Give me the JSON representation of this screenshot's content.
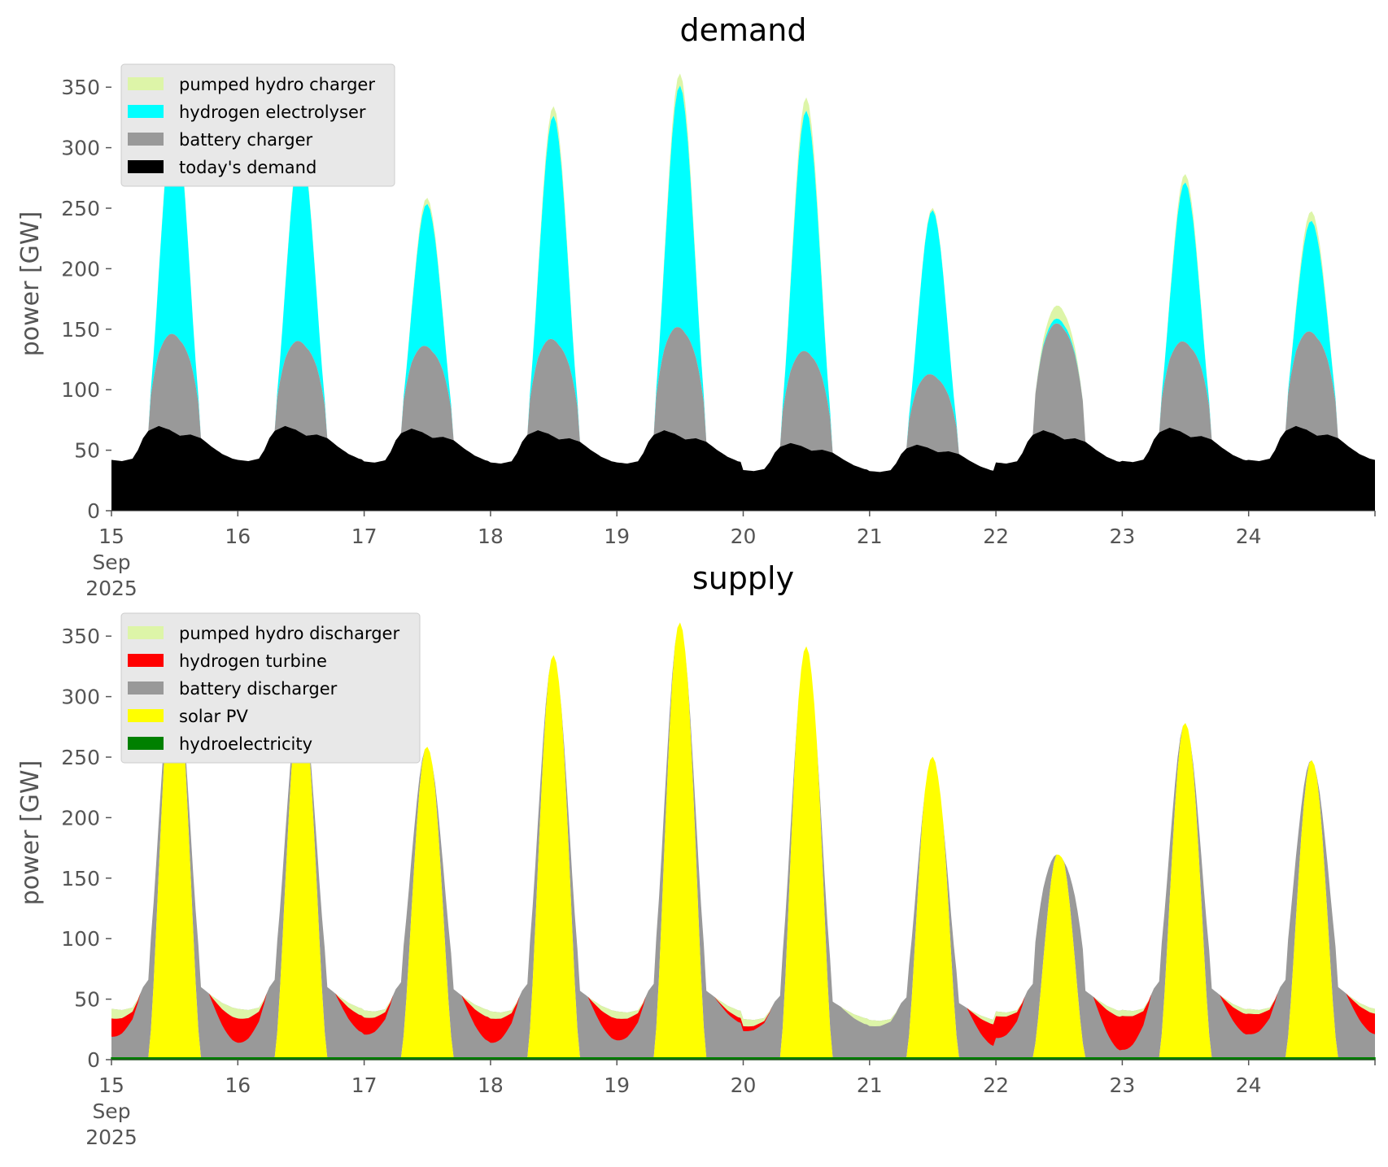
{
  "chart_data": [
    {
      "type": "area",
      "stacked": true,
      "title": "demand",
      "ylabel": "power [GW]",
      "xlabel": "",
      "xlim": [
        "2025-09-15",
        "2025-09-25"
      ],
      "ylim": [
        0,
        375
      ],
      "yticks": [
        0,
        50,
        100,
        150,
        200,
        250,
        300,
        350
      ],
      "xtick_labels": [
        "15\nSep\n2025",
        "16",
        "17",
        "18",
        "19",
        "20",
        "21",
        "22",
        "23",
        "24"
      ],
      "grid": false,
      "legend_position": "upper-left",
      "legend": [
        "pumped hydro charger",
        "hydrogen electrolyser",
        "battery charger",
        "today's demand"
      ],
      "series": [
        {
          "name": "today's demand",
          "color": "#000000",
          "base_profile": [
            [
              0,
              42
            ],
            [
              2,
              41
            ],
            [
              4,
              43
            ],
            [
              5,
              50
            ],
            [
              6,
              60
            ],
            [
              7,
              66
            ],
            [
              9,
              70
            ],
            [
              11,
              67
            ],
            [
              13,
              62
            ],
            [
              15,
              63
            ],
            [
              17,
              60
            ],
            [
              19,
              53
            ],
            [
              21,
              47
            ],
            [
              23,
              43
            ]
          ],
          "day_scale": [
            1.0,
            1.0,
            0.97,
            0.95,
            0.95,
            0.8,
            0.78,
            0.95,
            0.98,
            1.0
          ]
        },
        {
          "name": "battery charger",
          "color": "#999999",
          "daily_peak": [
            146,
            140,
            138,
            145,
            155,
            145,
            127,
            158,
            141,
            148
          ]
        },
        {
          "name": "hydrogen electrolyser",
          "color": "#00FFFF",
          "daily_peak": [
            330,
            302,
            256,
            330,
            355,
            344,
            263,
            162,
            273,
            240
          ]
        },
        {
          "name": "pumped hydro charger",
          "color": "#DDF5A8",
          "daily_peak": [
            333,
            305,
            261,
            338,
            365,
            355,
            265,
            173,
            280,
            248
          ]
        }
      ]
    },
    {
      "type": "area",
      "stacked": true,
      "title": "supply",
      "ylabel": "power [GW]",
      "xlabel": "",
      "xlim": [
        "2025-09-15",
        "2025-09-25"
      ],
      "ylim": [
        0,
        375
      ],
      "yticks": [
        0,
        50,
        100,
        150,
        200,
        250,
        300,
        350
      ],
      "xtick_labels": [
        "15\nSep\n2025",
        "16",
        "17",
        "18",
        "19",
        "20",
        "21",
        "22",
        "23",
        "24"
      ],
      "grid": false,
      "legend_position": "upper-left",
      "legend": [
        "pumped hydro discharger",
        "hydrogen turbine",
        "battery discharger",
        "solar PV",
        "hydroelectricity"
      ],
      "series": [
        {
          "name": "hydroelectricity",
          "color": "#008000",
          "level": 1.5
        },
        {
          "name": "solar PV",
          "color": "#FFFF00",
          "daily_peak": [
            333,
            305,
            261,
            338,
            365,
            355,
            265,
            173,
            280,
            248
          ]
        },
        {
          "name": "battery discharger",
          "color": "#999999",
          "follows": "today's demand"
        },
        {
          "name": "hydrogen turbine",
          "color": "#FF0000",
          "night_depth": [
            15,
            20,
            14,
            20,
            18,
            4,
            0,
            18,
            28,
            17
          ]
        },
        {
          "name": "pumped hydro discharger",
          "color": "#DDF5A8",
          "night_depth": [
            8,
            8,
            6,
            6,
            6,
            6,
            5,
            4,
            5,
            4
          ]
        }
      ]
    }
  ]
}
